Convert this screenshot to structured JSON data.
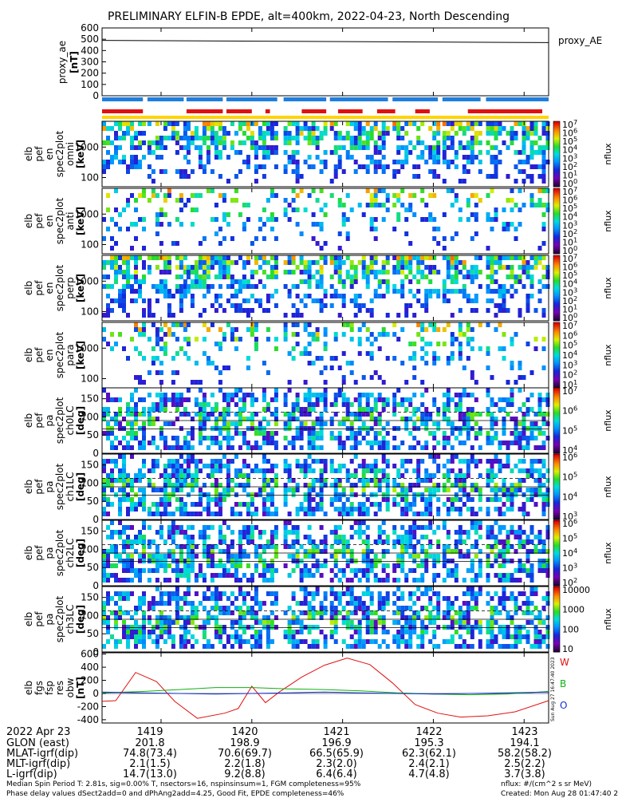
{
  "title": "PRELIMINARY ELFIN-B EPDE, alt=400km, 2022-04-23, North Descending",
  "proxy_panel": {
    "ylabel_lines": [
      "proxy_ae",
      "[nT]"
    ],
    "yticks": [
      "600",
      "500",
      "400",
      "300",
      "200",
      "100",
      "0"
    ],
    "legend": "proxy_AE",
    "line_color": "#000000"
  },
  "status_bars": {
    "blue_color": "#1e7fe0",
    "red_color": "#e01010",
    "yellow_color": "#ffd400"
  },
  "spec_panels": [
    {
      "ylabel_lines": [
        "elb",
        "pef",
        "en",
        "spec2plot",
        "omni",
        "[keV]"
      ],
      "yticks": [
        "1000",
        "100"
      ],
      "cb_label": "nflux",
      "cb_ticks": [
        "10^7",
        "10^6",
        "10^5",
        "10^4",
        "10^3",
        "10^2",
        "10^1",
        "10^0"
      ]
    },
    {
      "ylabel_lines": [
        "elb",
        "pef",
        "en",
        "spec2plot",
        "anti",
        "[keV]"
      ],
      "yticks": [
        "1000",
        "100"
      ],
      "cb_label": "nflux",
      "cb_ticks": [
        "10^7",
        "10^6",
        "10^5",
        "10^4",
        "10^3",
        "10^2",
        "10^1",
        "10^0"
      ]
    },
    {
      "ylabel_lines": [
        "elb",
        "pef",
        "en",
        "spec2plot",
        "perp",
        "[keV]"
      ],
      "yticks": [
        "1000",
        "100"
      ],
      "cb_label": "nflux",
      "cb_ticks": [
        "10^7",
        "10^6",
        "10^5",
        "10^4",
        "10^3",
        "10^2",
        "10^1",
        "10^0"
      ]
    },
    {
      "ylabel_lines": [
        "elb",
        "pef",
        "en",
        "spec2plot",
        "para",
        "[keV]"
      ],
      "yticks": [
        "1000",
        "100"
      ],
      "cb_label": "nflux",
      "cb_ticks": [
        "10^7",
        "10^6",
        "10^5",
        "10^4",
        "10^3",
        "10^2",
        "10^1"
      ]
    },
    {
      "ylabel_lines": [
        "elb",
        "pef",
        "pa",
        "spec2plot",
        "ch0LC",
        "[deg]"
      ],
      "yticks": [
        "150",
        "100",
        "50",
        "0"
      ],
      "cb_label": "nflux",
      "cb_ticks": [
        "10^7",
        "10^6",
        "10^5",
        "10^4"
      ]
    },
    {
      "ylabel_lines": [
        "elb",
        "pef",
        "pa",
        "spec2plot",
        "ch1LC",
        "[deg]"
      ],
      "yticks": [
        "150",
        "100",
        "50",
        "0"
      ],
      "cb_label": "nflux",
      "cb_ticks": [
        "10^6",
        "10^5",
        "10^4",
        "10^3"
      ]
    },
    {
      "ylabel_lines": [
        "elb",
        "pef",
        "pa",
        "spec2plot",
        "ch2LC",
        "[deg]"
      ],
      "yticks": [
        "150",
        "100",
        "50",
        "0"
      ],
      "cb_label": "nflux",
      "cb_ticks": [
        "10^6",
        "10^5",
        "10^4",
        "10^3",
        "10^2"
      ]
    },
    {
      "ylabel_lines": [
        "elb",
        "pef",
        "pa",
        "spec2plot",
        "ch3LC",
        "[deg]"
      ],
      "yticks": [
        "150",
        "100",
        "50",
        "0"
      ],
      "cb_label": "nflux",
      "cb_ticks": [
        "10000",
        "1000",
        "100",
        "10"
      ]
    }
  ],
  "fgs_panel": {
    "ylabel_lines": [
      "elb",
      "fgs",
      "fsp",
      "res",
      "obw",
      "[nT]"
    ],
    "yticks": [
      "600",
      "400",
      "200",
      "0",
      "-200",
      "-400"
    ],
    "legend": [
      {
        "label": "W",
        "color": "#e01010"
      },
      {
        "label": "B",
        "color": "#10b010"
      },
      {
        "label": "O",
        "color": "#1030d0"
      }
    ],
    "side_note": "Sun Aug 27 16:47:40 2023"
  },
  "footer_rows": [
    {
      "label": "2022 Apr 23",
      "values": [
        "1419",
        "1420",
        "1421",
        "1422",
        "1423"
      ]
    },
    {
      "label": "GLON (east)",
      "values": [
        "201.8",
        "198.9",
        "196.9",
        "195.3",
        "194.1"
      ]
    },
    {
      "label": "MLAT-igrf(dip)",
      "values": [
        "74.8(73.4)",
        "70.6(69.7)",
        "66.5(65.9)",
        "62.3(62.1)",
        "58.2(58.2)"
      ]
    },
    {
      "label": "MLT-igrf(dip)",
      "values": [
        "2.1(1.5)",
        "2.2(1.8)",
        "2.3(2.0)",
        "2.4(2.1)",
        "2.5(2.2)"
      ]
    },
    {
      "label": "L-igrf(dip)",
      "values": [
        "14.7(13.0)",
        "9.2(8.8)",
        "6.4(6.4)",
        "4.7(4.8)",
        "3.7(3.8)"
      ]
    }
  ],
  "bottom_notes": {
    "left_line1": "Median Spin Period T: 2.81s, sig=0.00% T, nsectors=16, nspinsinsum=1, FGM completeness=95%",
    "left_line2": "Phase delay values dSect2add=0 and dPhAng2add=4.25, Good Fit, EPDE completeness=46%",
    "right_line1": "nflux: #/(cm^2 s sr MeV)",
    "right_line2": "Created: Mon Aug 28 01:47:40 2023"
  },
  "chart_data": {
    "type": "heatmap",
    "title": "PRELIMINARY ELFIN-B EPDE, alt=400km, 2022-04-23, North Descending",
    "x_tick_labels": [
      "1419",
      "1420",
      "1421",
      "1422",
      "1423"
    ],
    "x_range_min": [
      1418.35,
      1423.27
    ],
    "proxy_ae": {
      "ylim": [
        0,
        600
      ],
      "value_start": 490,
      "value_end": 470
    },
    "energy_ylim_keV": [
      50,
      7000
    ],
    "pitch_angle_ylim_deg": [
      0,
      180
    ],
    "pitch_angle_dashed_deg": [
      113
    ],
    "pitch_angle_solid_deg": [
      90,
      67
    ],
    "science_zones_min": [
      [
        1418.35,
        1418.8
      ],
      [
        1418.85,
        1419.25
      ],
      [
        1419.28,
        1419.68
      ],
      [
        1419.72,
        1420.28
      ],
      [
        1420.35,
        1420.82
      ],
      [
        1420.86,
        1421.5
      ],
      [
        1421.55,
        1422.05
      ],
      [
        1422.1,
        1422.52
      ],
      [
        1422.58,
        1423.27
      ]
    ],
    "red_segments_min": [
      [
        1418.35,
        1418.8
      ],
      [
        1419.28,
        1419.68
      ],
      [
        1419.72,
        1420.0
      ],
      [
        1420.15,
        1420.2
      ],
      [
        1420.55,
        1420.82
      ],
      [
        1420.95,
        1421.22
      ],
      [
        1421.38,
        1421.58
      ],
      [
        1421.8,
        1421.96
      ],
      [
        1422.38,
        1423.2
      ]
    ],
    "fgs_residual_nT": {
      "ylim": [
        -450,
        620
      ],
      "W": {
        "x": [
          1418.35,
          1418.5,
          1418.72,
          1418.95,
          1419.15,
          1419.4,
          1419.7,
          1419.85,
          1420.0,
          1420.15,
          1420.3,
          1420.55,
          1420.8,
          1421.05,
          1421.3,
          1421.55,
          1421.8,
          1422.05,
          1422.3,
          1422.6,
          1422.9,
          1423.27
        ],
        "y": [
          -120,
          -110,
          320,
          180,
          -120,
          -380,
          -300,
          -230,
          110,
          -140,
          20,
          250,
          430,
          540,
          440,
          160,
          -170,
          -300,
          -360,
          -340,
          -280,
          -110
        ]
      },
      "B": {
        "x": [
          1418.35,
          1418.8,
          1419.2,
          1419.6,
          1420.0,
          1420.4,
          1420.8,
          1421.2,
          1421.6,
          1422.0,
          1422.4,
          1422.8,
          1423.27
        ],
        "y": [
          10,
          30,
          60,
          90,
          90,
          70,
          60,
          40,
          10,
          -10,
          -20,
          -10,
          30
        ]
      },
      "O": {
        "x": [
          1418.35,
          1418.8,
          1419.2,
          1419.6,
          1420.0,
          1420.4,
          1420.8,
          1421.2,
          1421.6,
          1422.0,
          1422.4,
          1422.8,
          1423.27
        ],
        "y": [
          20,
          10,
          0,
          -10,
          0,
          10,
          20,
          10,
          0,
          -10,
          0,
          10,
          20
        ]
      }
    }
  }
}
